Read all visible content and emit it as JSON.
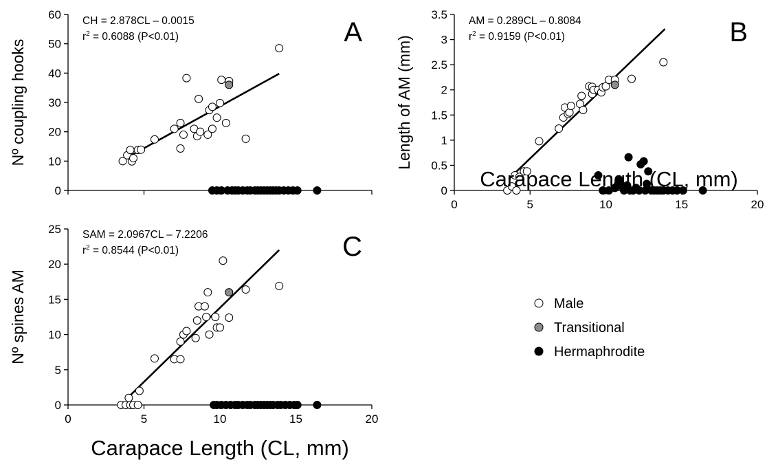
{
  "figure": {
    "xlabel_bottom": "Carapace Length (CL, mm)",
    "xlabel_right": "Carapace Length (CL, mm)"
  },
  "legend": {
    "items": [
      {
        "label": "Male",
        "fill": "#ffffff"
      },
      {
        "label": "Transitional",
        "fill": "#8c8c8c"
      },
      {
        "label": "Hermaphrodite",
        "fill": "#000000"
      }
    ]
  },
  "colors": {
    "male": "#ffffff",
    "transitional": "#8c8c8c",
    "hermaphrodite": "#000000",
    "axis": "#000000"
  },
  "chart_data": [
    {
      "panel": "A",
      "type": "scatter",
      "ylabel": "Nº coupling hooks",
      "equation": "CH = 2.878CL – 0.0015",
      "r2_prefix": "r",
      "r2_sup": "2",
      "r2_rest": " = 0.6088 (P<0.01)",
      "xlim": [
        0,
        20
      ],
      "ylim": [
        0,
        60
      ],
      "xticks": [],
      "yticks": [
        0,
        10,
        20,
        30,
        40,
        50,
        60
      ],
      "regression": {
        "slope": 2.878,
        "intercept": -0.0015,
        "x_range": [
          3.5,
          13.9
        ],
        "y_range": [
          10.1,
          39.8
        ]
      },
      "series": [
        {
          "name": "Male",
          "points": [
            [
              3.6,
              10
            ],
            [
              3.9,
              12
            ],
            [
              4.1,
              13.8
            ],
            [
              4.2,
              9.9
            ],
            [
              4.3,
              11
            ],
            [
              4.6,
              13.8
            ],
            [
              4.8,
              13.9
            ],
            [
              5.7,
              17.4
            ],
            [
              7,
              21
            ],
            [
              7.4,
              14.3
            ],
            [
              7.4,
              23
            ],
            [
              7.6,
              19
            ],
            [
              7.8,
              38.3
            ],
            [
              8.3,
              21
            ],
            [
              8.5,
              18.5
            ],
            [
              8.6,
              31.2
            ],
            [
              8.7,
              20
            ],
            [
              9.2,
              19
            ],
            [
              9.3,
              27.4
            ],
            [
              9.5,
              28.5
            ],
            [
              9.5,
              21
            ],
            [
              9.8,
              24.8
            ],
            [
              10,
              29.8
            ],
            [
              10.1,
              37.7
            ],
            [
              10.4,
              23
            ],
            [
              10.6,
              37.3
            ],
            [
              11.7,
              17.6
            ],
            [
              13.9,
              48.5
            ]
          ]
        },
        {
          "name": "Transitional",
          "points": [
            [
              10.6,
              36
            ]
          ]
        },
        {
          "name": "Hermaphrodite",
          "points": [
            [
              9.5,
              0
            ],
            [
              9.8,
              0
            ],
            [
              10.1,
              0
            ],
            [
              10.5,
              0
            ],
            [
              10.8,
              0
            ],
            [
              11,
              0
            ],
            [
              11.2,
              0
            ],
            [
              11.5,
              0
            ],
            [
              11.8,
              0
            ],
            [
              12,
              0
            ],
            [
              12.3,
              0
            ],
            [
              12.5,
              0
            ],
            [
              12.7,
              0
            ],
            [
              12.9,
              0
            ],
            [
              13.1,
              0
            ],
            [
              13.3,
              0
            ],
            [
              13.5,
              0
            ],
            [
              13.7,
              0
            ],
            [
              13.9,
              0
            ],
            [
              14.2,
              0
            ],
            [
              14.5,
              0
            ],
            [
              14.8,
              0
            ],
            [
              15.1,
              0
            ],
            [
              16.4,
              0
            ]
          ]
        }
      ]
    },
    {
      "panel": "B",
      "type": "scatter",
      "ylabel": "Length of AM (mm)",
      "equation": "AM = 0.289CL – 0.8084",
      "r2_prefix": "r",
      "r2_sup": "2",
      "r2_rest": " = 0.9159 (P<0.01)",
      "xlim": [
        0,
        20
      ],
      "ylim": [
        0,
        3.5
      ],
      "xticks": [
        0,
        5,
        10,
        15,
        20
      ],
      "yticks": [
        0,
        0.5,
        1,
        1.5,
        2,
        2.5,
        3,
        3.5
      ],
      "regression": {
        "slope": 0.289,
        "intercept": -0.8084,
        "x_range": [
          3.6,
          13.9
        ],
        "y_range": [
          0.23,
          3.21
        ]
      },
      "series": [
        {
          "name": "Male",
          "points": [
            [
              3.5,
              0
            ],
            [
              3.8,
              0.08
            ],
            [
              4,
              0.3
            ],
            [
              4.1,
              0
            ],
            [
              4.3,
              0.27
            ],
            [
              4.6,
              0.38
            ],
            [
              4.8,
              0.38
            ],
            [
              5.6,
              0.98
            ],
            [
              6.9,
              1.23
            ],
            [
              7.2,
              1.45
            ],
            [
              7.3,
              1.65
            ],
            [
              7.5,
              1.52
            ],
            [
              7.6,
              1.55
            ],
            [
              7.7,
              1.68
            ],
            [
              8.3,
              1.72
            ],
            [
              8.4,
              1.88
            ],
            [
              8.5,
              1.6
            ],
            [
              8.9,
              2.07
            ],
            [
              9.1,
              2.06
            ],
            [
              9.1,
              1.92
            ],
            [
              9.2,
              2
            ],
            [
              9.5,
              2
            ],
            [
              9.7,
              1.95
            ],
            [
              9.8,
              2.05
            ],
            [
              10,
              2.07
            ],
            [
              10.2,
              2.2
            ],
            [
              10.6,
              2.2
            ],
            [
              11.7,
              2.22
            ],
            [
              13.8,
              2.55
            ]
          ]
        },
        {
          "name": "Transitional",
          "points": [
            [
              10.6,
              2.1
            ]
          ]
        },
        {
          "name": "Hermaphrodite",
          "points": [
            [
              9.5,
              0.3
            ],
            [
              9.8,
              0
            ],
            [
              10.2,
              0
            ],
            [
              10.6,
              0.05
            ],
            [
              10.8,
              0.12
            ],
            [
              10.9,
              0.2
            ],
            [
              11,
              0.1
            ],
            [
              11.2,
              0
            ],
            [
              11.4,
              0.1
            ],
            [
              11.5,
              0.66
            ],
            [
              11.6,
              0
            ],
            [
              11.8,
              0
            ],
            [
              12,
              0.05
            ],
            [
              12.2,
              0
            ],
            [
              12.3,
              0.52
            ],
            [
              12.5,
              0.58
            ],
            [
              12.6,
              0
            ],
            [
              12.7,
              0.13
            ],
            [
              12.8,
              0.38
            ],
            [
              13,
              0
            ],
            [
              13.2,
              0
            ],
            [
              13.4,
              0
            ],
            [
              13.6,
              0
            ],
            [
              13.8,
              0
            ],
            [
              14.1,
              0
            ],
            [
              14.4,
              0
            ],
            [
              14.7,
              0
            ],
            [
              15.1,
              0
            ],
            [
              16.4,
              0
            ]
          ]
        }
      ]
    },
    {
      "panel": "C",
      "type": "scatter",
      "ylabel": "Nº spines AM",
      "equation": "SAM = 2.0967CL – 7.2206",
      "r2_prefix": "r",
      "r2_sup": "2",
      "r2_rest": " = 0.8544 (P<0.01)",
      "xlim": [
        0,
        20
      ],
      "ylim": [
        0,
        25
      ],
      "xticks": [
        0,
        5,
        10,
        15,
        20
      ],
      "yticks": [
        0,
        5,
        10,
        15,
        20,
        25
      ],
      "regression": {
        "slope": 2.0967,
        "intercept": -7.2206,
        "x_range": [
          3.9,
          13.9
        ],
        "y_range": [
          0.96,
          22
        ]
      },
      "series": [
        {
          "name": "Male",
          "points": [
            [
              3.5,
              0
            ],
            [
              3.8,
              0
            ],
            [
              4,
              1
            ],
            [
              4.1,
              0
            ],
            [
              4.3,
              0
            ],
            [
              4.6,
              0
            ],
            [
              4.7,
              2
            ],
            [
              5.7,
              6.6
            ],
            [
              7,
              6.5
            ],
            [
              7.4,
              6.5
            ],
            [
              7.4,
              9
            ],
            [
              7.6,
              10
            ],
            [
              7.8,
              10.5
            ],
            [
              8.4,
              9.5
            ],
            [
              8.5,
              12
            ],
            [
              8.6,
              14
            ],
            [
              9,
              14
            ],
            [
              9.1,
              12.5
            ],
            [
              9.2,
              16
            ],
            [
              9.3,
              10
            ],
            [
              9.7,
              12.5
            ],
            [
              9.8,
              11
            ],
            [
              10,
              11
            ],
            [
              10.2,
              20.5
            ],
            [
              10.6,
              12.4
            ],
            [
              11.7,
              16.4
            ],
            [
              13.9,
              16.9
            ]
          ]
        },
        {
          "name": "Transitional",
          "points": [
            [
              10.6,
              16
            ]
          ]
        },
        {
          "name": "Hermaphrodite",
          "points": [
            [
              9.6,
              0
            ],
            [
              9.8,
              0
            ],
            [
              10.1,
              0
            ],
            [
              10.4,
              0
            ],
            [
              10.7,
              0
            ],
            [
              11,
              0
            ],
            [
              11.2,
              0
            ],
            [
              11.5,
              0
            ],
            [
              11.8,
              0
            ],
            [
              12,
              0
            ],
            [
              12.3,
              0
            ],
            [
              12.5,
              0
            ],
            [
              12.7,
              0
            ],
            [
              12.9,
              0
            ],
            [
              13.1,
              0
            ],
            [
              13.3,
              0
            ],
            [
              13.5,
              0
            ],
            [
              13.8,
              0
            ],
            [
              14,
              0
            ],
            [
              14.3,
              0
            ],
            [
              14.6,
              0
            ],
            [
              14.9,
              0
            ],
            [
              15.1,
              0
            ],
            [
              16.4,
              0
            ]
          ]
        }
      ]
    }
  ]
}
